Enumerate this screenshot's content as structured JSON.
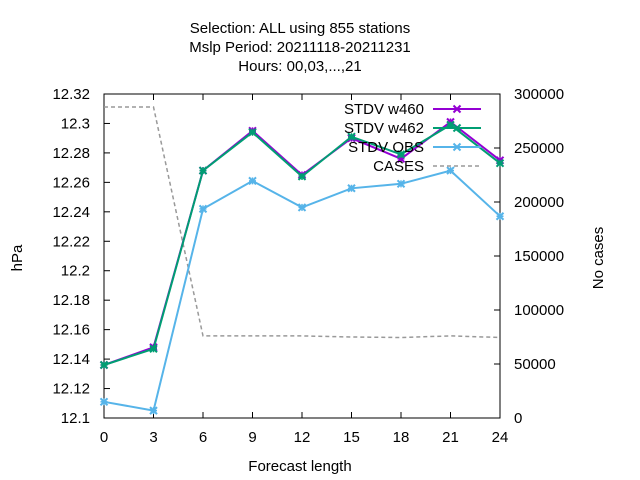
{
  "chart_data": {
    "type": "line",
    "title_lines": [
      "Selection: ALL using   855 stations",
      "Mslp   Period: 20211118-20211231",
      "Hours:  00,03,...,21"
    ],
    "xlabel": "Forecast length",
    "ylabel": "hPa",
    "y2label": "No cases",
    "x": [
      0,
      3,
      6,
      9,
      12,
      15,
      18,
      21,
      24
    ],
    "xlim": [
      0,
      24
    ],
    "ylim": [
      12.1,
      12.32
    ],
    "y2lim": [
      0,
      300000
    ],
    "x_ticks": [
      "0",
      "3",
      "6",
      "9",
      "12",
      "15",
      "18",
      "21",
      "24"
    ],
    "y_ticks": [
      "12.1",
      "12.12",
      "12.14",
      "12.16",
      "12.18",
      "12.2",
      "12.22",
      "12.24",
      "12.26",
      "12.28",
      "12.3",
      "12.32"
    ],
    "y2_ticks": [
      "0",
      "50000",
      "100000",
      "150000",
      "200000",
      "250000",
      "300000"
    ],
    "grid": false,
    "legend_position": "top-right",
    "series": [
      {
        "name": "STDV w460",
        "color": "#9400d3",
        "axis": "y1",
        "marker": "x",
        "values": [
          12.136,
          12.148,
          12.268,
          12.295,
          12.265,
          12.29,
          12.276,
          12.301,
          12.275
        ]
      },
      {
        "name": "STDV w462",
        "color": "#009e73",
        "axis": "y1",
        "marker": "x",
        "values": [
          12.136,
          12.147,
          12.268,
          12.294,
          12.264,
          12.291,
          12.279,
          12.299,
          12.273
        ]
      },
      {
        "name": "STDV OBS",
        "color": "#56b4e9",
        "axis": "y1",
        "marker": "x",
        "values": [
          12.111,
          12.105,
          12.242,
          12.261,
          12.243,
          12.256,
          12.259,
          12.268,
          12.237
        ]
      },
      {
        "name": "CASES",
        "color": "#999999",
        "axis": "y2",
        "dashed": true,
        "values": [
          288000,
          288000,
          76000,
          76000,
          76000,
          75000,
          74500,
          76000,
          74500
        ]
      }
    ]
  }
}
